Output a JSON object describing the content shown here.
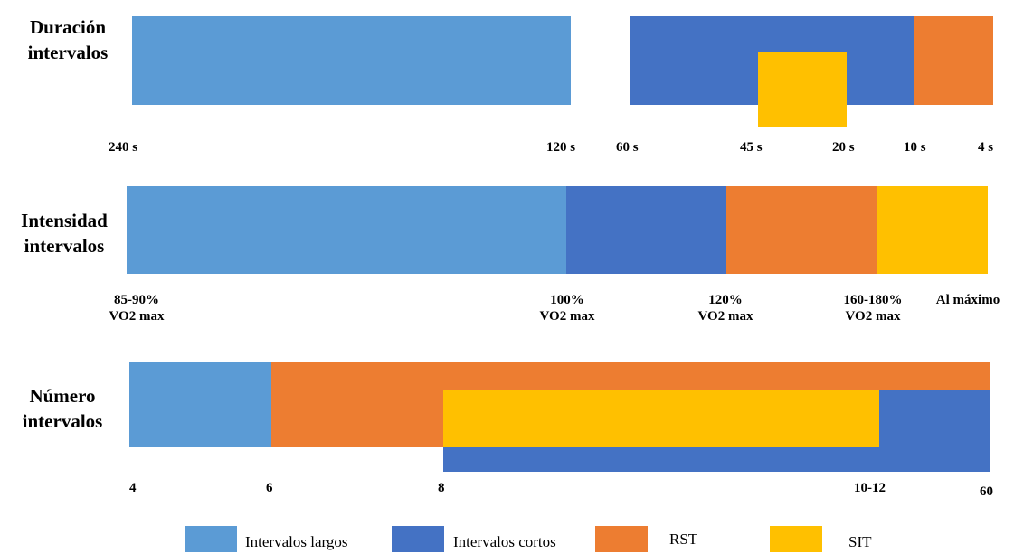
{
  "colors": {
    "intervalos_largos": "#5b9bd5",
    "intervalos_cortos": "#4472c4",
    "rst": "#ed7d31",
    "sit": "#ffc000"
  },
  "rows": {
    "duracion": {
      "label_line1": "Duración",
      "label_line2": "intervalos",
      "ticks": [
        "240 s",
        "120 s",
        "60 s",
        "45 s",
        "20 s",
        "10 s",
        "4 s"
      ]
    },
    "intensidad": {
      "label_line1": "Intensidad",
      "label_line2": "intervalos",
      "ticks": [
        {
          "line1": "85-90%",
          "line2": "VO2 max"
        },
        {
          "line1": "100%",
          "line2": "VO2 max"
        },
        {
          "line1": "120%",
          "line2": "VO2 max"
        },
        {
          "line1": "160-180%",
          "line2": "VO2 max"
        },
        {
          "line1": "Al máximo",
          "line2": ""
        }
      ]
    },
    "numero": {
      "label_line1": "Número",
      "label_line2": "intervalos",
      "ticks": [
        "4",
        "6",
        "8",
        "10-12",
        "60"
      ]
    }
  },
  "legend": [
    {
      "label": "Intervalos largos",
      "color_key": "intervalos_largos"
    },
    {
      "label": "Intervalos cortos",
      "color_key": "intervalos_cortos"
    },
    {
      "label": "RST",
      "color_key": "rst"
    },
    {
      "label": "SIT",
      "color_key": "sit"
    }
  ]
}
